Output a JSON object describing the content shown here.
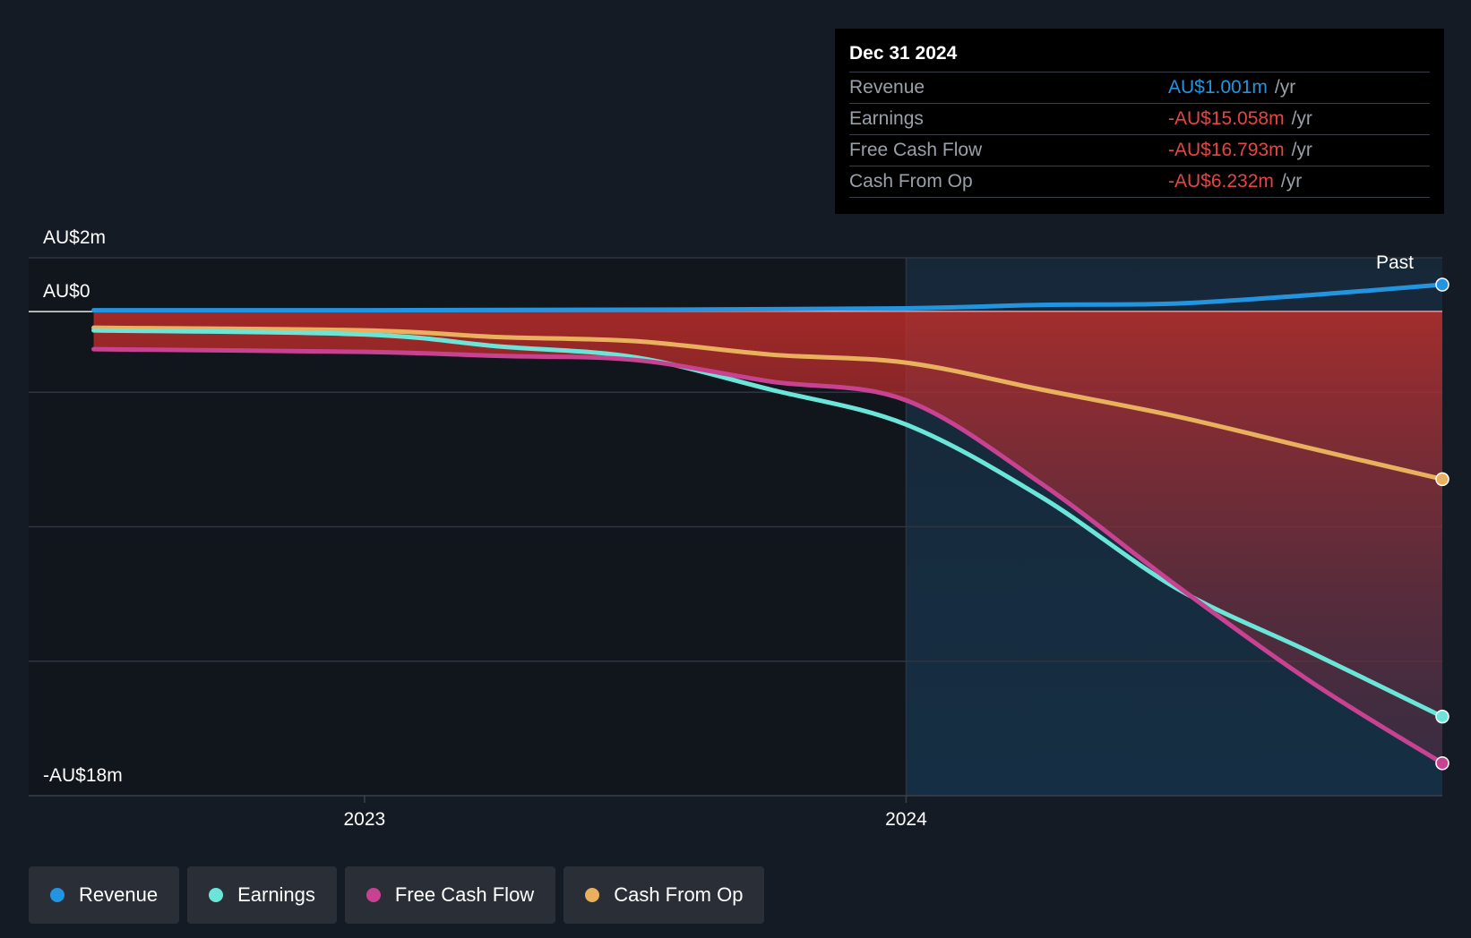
{
  "tooltip": {
    "date": "Dec 31 2024",
    "rows": [
      {
        "label": "Revenue",
        "value": "AU$1.001m",
        "unit": "/yr",
        "color": "#2394df"
      },
      {
        "label": "Earnings",
        "value": "-AU$15.058m",
        "unit": "/yr",
        "color": "#e64545"
      },
      {
        "label": "Free Cash Flow",
        "value": "-AU$16.793m",
        "unit": "/yr",
        "color": "#e64545"
      },
      {
        "label": "Cash From Op",
        "value": "-AU$6.232m",
        "unit": "/yr",
        "color": "#e64545"
      }
    ]
  },
  "past_label": "Past",
  "legend": [
    {
      "label": "Revenue",
      "color": "#2394df"
    },
    {
      "label": "Earnings",
      "color": "#6ce5d9"
    },
    {
      "label": "Free Cash Flow",
      "color": "#c74391"
    },
    {
      "label": "Cash From Op",
      "color": "#e9b15e"
    }
  ],
  "chart_data": {
    "type": "line",
    "y_tick_labels": [
      "AU$2m",
      "AU$0",
      "-AU$18m"
    ],
    "x_tick_labels": [
      "2023",
      "2024"
    ],
    "ylim": [
      -18,
      2
    ],
    "xlim": [
      2022.38,
      2024.99
    ],
    "series": [
      {
        "name": "Revenue",
        "color": "#2394df",
        "x": [
          2022.5,
          2023.0,
          2023.5,
          2024.0,
          2024.25,
          2024.5,
          2024.75,
          2024.99
        ],
        "y": [
          0.05,
          0.05,
          0.07,
          0.12,
          0.25,
          0.3,
          0.62,
          1.001
        ]
      },
      {
        "name": "Earnings",
        "color": "#6ce5d9",
        "x": [
          2022.5,
          2023.0,
          2023.25,
          2023.5,
          2023.75,
          2024.0,
          2024.25,
          2024.5,
          2024.75,
          2024.99
        ],
        "y": [
          -0.7,
          -0.85,
          -1.3,
          -1.7,
          -2.9,
          -4.2,
          -6.9,
          -10.3,
          -12.7,
          -15.058
        ]
      },
      {
        "name": "Free Cash Flow",
        "color": "#c74391",
        "x": [
          2022.5,
          2023.0,
          2023.25,
          2023.5,
          2023.75,
          2024.0,
          2024.25,
          2024.5,
          2024.75,
          2024.99
        ],
        "y": [
          -1.4,
          -1.5,
          -1.65,
          -1.8,
          -2.6,
          -3.3,
          -6.4,
          -10.2,
          -13.8,
          -16.793
        ]
      },
      {
        "name": "Cash From Op",
        "color": "#e9b15e",
        "x": [
          2022.5,
          2023.0,
          2023.25,
          2023.5,
          2023.75,
          2024.0,
          2024.25,
          2024.5,
          2024.75,
          2024.99
        ],
        "y": [
          -0.6,
          -0.7,
          -0.95,
          -1.1,
          -1.6,
          -1.9,
          -2.9,
          -3.9,
          -5.1,
          -6.232
        ]
      }
    ],
    "forecast_split_x": 2024.0,
    "legend_position": "bottom-left"
  }
}
